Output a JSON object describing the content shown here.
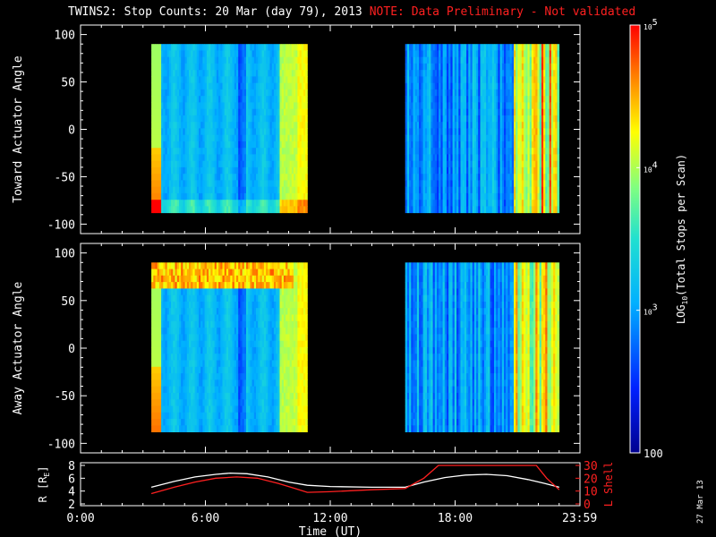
{
  "title": {
    "main": "TWINS2: Stop Counts: 20 Mar (day  79), 2013",
    "note": "NOTE: Data Preliminary - Not validated"
  },
  "stamp": "27 Mar 13",
  "colors": {
    "background": "#000000",
    "foreground": "#ffffff",
    "note": "#ff2020",
    "l_shell": "#ff2020",
    "r_line": "#ffffff"
  },
  "chart_data": [
    {
      "type": "heatmap",
      "name": "Toward Actuator Angle",
      "ylabel": "Toward Actuator Angle",
      "ylim": [
        -110,
        110
      ],
      "yticks": [
        100,
        50,
        0,
        -50,
        -100
      ],
      "xlim": [
        0,
        24
      ],
      "data_segments_hours": [
        [
          3.4,
          10.9
        ],
        [
          15.6,
          23.0
        ]
      ],
      "angle_range": [
        -88,
        90
      ],
      "colormap": "rainbow (log scale)"
    },
    {
      "type": "heatmap",
      "name": "Away Actuator Angle",
      "ylabel": "Away Actuator Angle",
      "ylim": [
        -110,
        110
      ],
      "yticks": [
        100,
        50,
        0,
        -50,
        -100
      ],
      "xlim": [
        0,
        24
      ],
      "data_segments_hours": [
        [
          3.4,
          10.9
        ],
        [
          15.6,
          23.0
        ]
      ],
      "angle_range": [
        -88,
        90
      ],
      "colormap": "rainbow (log scale)"
    },
    {
      "type": "line",
      "ylabel_left": "R [R",
      "ylabel_left_sub": "E",
      "ylabel_left_end": "]",
      "ylabel_right": "L Shell",
      "ylim_left": [
        2,
        8
      ],
      "yticks_left": [
        2,
        4,
        6,
        8
      ],
      "ylim_right": [
        0,
        30
      ],
      "yticks_right": [
        0,
        10,
        20,
        30
      ],
      "xlabel": "Time (UT)",
      "xticks": [
        0,
        6,
        12,
        18,
        23.983
      ],
      "xtick_labels": [
        "0:00",
        "6:00",
        "12:00",
        "18:00",
        "23:59"
      ],
      "series": [
        {
          "label": "R",
          "axis": "left",
          "x": [
            3.4,
            4.5,
            5.5,
            6.5,
            7.2,
            8.0,
            9.0,
            10.0,
            10.9,
            12.0,
            14.0,
            15.6,
            16.5,
            17.5,
            18.5,
            19.5,
            20.5,
            21.5,
            22.3,
            23.0
          ],
          "y": [
            4.6,
            5.5,
            6.2,
            6.6,
            6.8,
            6.7,
            6.2,
            5.4,
            4.9,
            4.7,
            4.6,
            4.6,
            5.4,
            6.1,
            6.5,
            6.6,
            6.4,
            5.8,
            5.2,
            4.6
          ]
        },
        {
          "label": "L Shell",
          "axis": "right",
          "x": [
            3.4,
            4.5,
            5.5,
            6.5,
            7.5,
            8.5,
            9.5,
            10.3,
            10.9,
            12.0,
            14.0,
            15.6,
            16.5,
            17.2,
            21.9,
            22.4,
            23.0
          ],
          "y": [
            8,
            13,
            17,
            20,
            21,
            20,
            16,
            12,
            9,
            9.5,
            11,
            12,
            20,
            30,
            30,
            20,
            11
          ]
        }
      ]
    },
    {
      "type": "colorbar",
      "label_pre": "LOG",
      "label_sub": "10",
      "label_post": "(Total Stops per Scan)",
      "range": [
        100,
        100000
      ],
      "tick_labels": [
        {
          "base": "10",
          "exp": "5",
          "value": 100000
        },
        {
          "base": "10",
          "exp": "4",
          "value": 10000
        },
        {
          "base": "10",
          "exp": "3",
          "value": 1000
        },
        {
          "base": "100",
          "exp": "",
          "value": 100
        }
      ]
    }
  ]
}
